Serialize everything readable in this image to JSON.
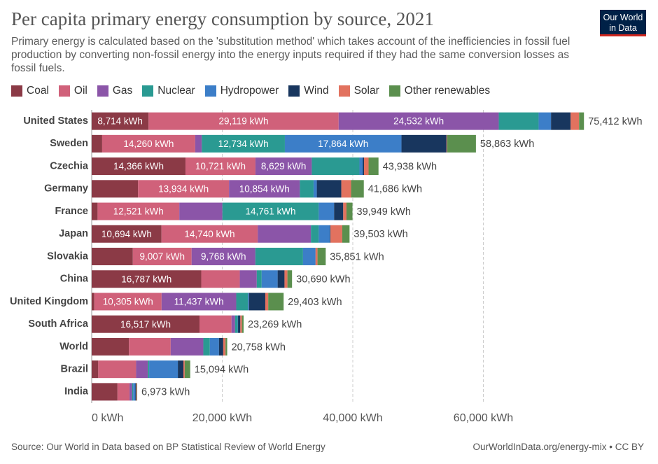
{
  "chart_data": {
    "type": "stacked-bar",
    "orientation": "horizontal",
    "title": "Per capita primary energy consumption by source, 2021",
    "subtitle": "Primary energy is calculated based on the 'substitution method' which takes account of the inefficiencies in fossil fuel production by converting non-fossil energy into the energy inputs required if they had the same conversion losses as fossil fuels.",
    "logo": [
      "Our World",
      "in Data"
    ],
    "source": "Source: Our World in Data based on BP Statistical Review of World Energy",
    "credit": "OurWorldInData.org/energy-mix • CC BY",
    "categories": [
      "United States",
      "Sweden",
      "Czechia",
      "Germany",
      "France",
      "Japan",
      "Slovakia",
      "China",
      "United Kingdom",
      "South Africa",
      "World",
      "Brazil",
      "India"
    ],
    "series": [
      {
        "name": "Coal",
        "color": "#8b3a46",
        "values": [
          8714,
          1600,
          14366,
          7100,
          900,
          10694,
          6300,
          16787,
          400,
          16517,
          5700,
          1000,
          3950
        ],
        "value_labels": [
          "8,714 kWh",
          null,
          "14,366 kWh",
          null,
          null,
          "10,694 kWh",
          null,
          "16,787 kWh",
          null,
          "16,517 kWh",
          null,
          null,
          null
        ]
      },
      {
        "name": "Oil",
        "color": "#d0617a",
        "values": [
          29119,
          14260,
          10721,
          13934,
          12521,
          14740,
          9007,
          5900,
          10305,
          4900,
          6400,
          5800,
          1850
        ],
        "value_labels": [
          "29,119 kWh",
          "14,260 kWh",
          "10,721 kWh",
          "13,934 kWh",
          "12,521 kWh",
          "14,740 kWh",
          "9,007 kWh",
          null,
          "10,305 kWh",
          null,
          null,
          null,
          null
        ]
      },
      {
        "name": "Gas",
        "color": "#8b55a8",
        "values": [
          24532,
          1000,
          8629,
          10854,
          6600,
          8150,
          9768,
          2600,
          11437,
          550,
          5000,
          1800,
          400
        ],
        "value_labels": [
          "24,532 kWh",
          null,
          "8,629 kWh",
          "10,854 kWh",
          null,
          null,
          "9,768 kWh",
          null,
          "11,437 kWh",
          null,
          null,
          null,
          null
        ]
      },
      {
        "name": "Nuclear",
        "color": "#2a9a92",
        "values": [
          6100,
          12734,
          7300,
          2100,
          14761,
          1200,
          7300,
          750,
          1800,
          400,
          1000,
          200,
          150
        ],
        "value_labels": [
          null,
          "12,734 kWh",
          null,
          null,
          "14,761 kWh",
          null,
          null,
          null,
          null,
          null,
          null,
          null,
          null
        ]
      },
      {
        "name": "Hydropower",
        "color": "#3c7ec8",
        "values": [
          1900,
          17864,
          500,
          500,
          2350,
          1700,
          1900,
          2450,
          150,
          50,
          1400,
          4400,
          350
        ],
        "value_labels": [
          null,
          "17,864 kWh",
          null,
          null,
          null,
          null,
          null,
          null,
          null,
          null,
          null,
          null,
          null
        ]
      },
      {
        "name": "Wind",
        "color": "#18365e",
        "values": [
          3000,
          6900,
          200,
          3750,
          1400,
          100,
          20,
          1050,
          2500,
          350,
          650,
          850,
          120
        ]
      },
      {
        "name": "Solar",
        "color": "#e2725f",
        "values": [
          1300,
          100,
          700,
          1500,
          500,
          1800,
          300,
          450,
          450,
          250,
          350,
          200,
          100
        ]
      },
      {
        "name": "Other renewables",
        "color": "#5b8f4e",
        "values": [
          747,
          4405,
          1522,
          1948,
          917,
          1119,
          1256,
          703,
          2361,
          252,
          258,
          844,
          53
        ]
      }
    ],
    "totals": [
      75412,
      58863,
      43938,
      41686,
      39949,
      39503,
      35851,
      30690,
      29403,
      23269,
      20758,
      15094,
      6973
    ],
    "total_labels": [
      "75,412 kWh",
      "58,863 kWh",
      "43,938 kWh",
      "41,686 kWh",
      "39,949 kWh",
      "39,503 kWh",
      "35,851 kWh",
      "30,690 kWh",
      "29,403 kWh",
      "23,269 kWh",
      "20,758 kWh",
      "15,094 kWh",
      "6,973 kWh"
    ],
    "xlim": [
      0,
      80000
    ],
    "xticks": [
      {
        "value": 0,
        "label": "0 kWh"
      },
      {
        "value": 20000,
        "label": "20,000 kWh"
      },
      {
        "value": 40000,
        "label": "40,000 kWh"
      },
      {
        "value": 60000,
        "label": "60,000 kWh"
      }
    ],
    "grid": true
  }
}
